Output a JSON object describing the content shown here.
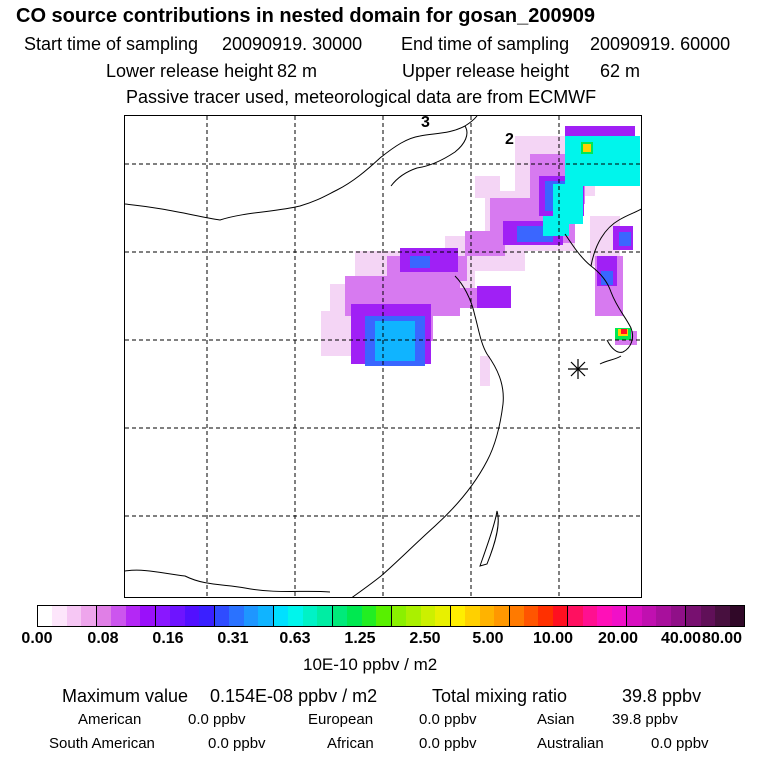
{
  "title": "CO  source contributions in nested domain for gosan_200909",
  "sampling": {
    "start_label": "Start time of sampling",
    "start_value": "20090919. 30000",
    "end_label": "End time of sampling",
    "end_value": "20090919. 60000"
  },
  "release": {
    "lower_label": "Lower release height",
    "lower_value": "82 m",
    "upper_label": "Upper release height",
    "upper_value": "62 m"
  },
  "tracer_note": "Passive tracer used, meteorological data are from ECMWF",
  "map": {
    "labels": [
      "3",
      "2"
    ],
    "receptor_marker": "asterisk-marker",
    "colors": {
      "land_outline": "#000000",
      "grid": "#000000"
    }
  },
  "colorbar": {
    "ticks": [
      "0.00",
      "0.08",
      "0.16",
      "0.31",
      "0.63",
      "1.25",
      "2.50",
      "5.00",
      "10.00",
      "20.00",
      "40.00",
      "80.00"
    ],
    "unit": "10E-10 ppbv / m2",
    "colors": [
      "#ffffff",
      "#fde6fb",
      "#f6c7f4",
      "#eea5ec",
      "#e07fe6",
      "#cc55ee",
      "#b428f5",
      "#9a10fa",
      "#8a17ff",
      "#6e14ff",
      "#5210ff",
      "#3a20ff",
      "#2f4cff",
      "#2a72ff",
      "#1e96ff",
      "#10b4ff",
      "#00e0ff",
      "#00f5ec",
      "#00f2c6",
      "#00eda3",
      "#00ea7a",
      "#00e850",
      "#22ee22",
      "#58f000",
      "#8af000",
      "#aaf000",
      "#ccf000",
      "#e8f000",
      "#ffee00",
      "#ffd000",
      "#ffb300",
      "#ff9800",
      "#ff7a00",
      "#ff5500",
      "#ff3000",
      "#ff1020",
      "#ff1060",
      "#ff1090",
      "#ff10b8",
      "#f010c8",
      "#d810c0",
      "#c010b0",
      "#a8109c",
      "#901088",
      "#781070",
      "#601058",
      "#48103f",
      "#300828"
    ]
  },
  "stats": {
    "max_label": "Maximum value",
    "max_value": "0.154E-08 ppbv / m2",
    "total_label": "Total mixing ratio",
    "total_value": "39.8 ppbv"
  },
  "regions": [
    {
      "name": "American",
      "value": "0.0 ppbv"
    },
    {
      "name": "European",
      "value": "0.0 ppbv"
    },
    {
      "name": "Asian",
      "value": "39.8 ppbv"
    },
    {
      "name": "South American",
      "value": "0.0 ppbv"
    },
    {
      "name": "African",
      "value": "0.0 ppbv"
    },
    {
      "name": "Australian",
      "value": "0.0 ppbv"
    }
  ]
}
